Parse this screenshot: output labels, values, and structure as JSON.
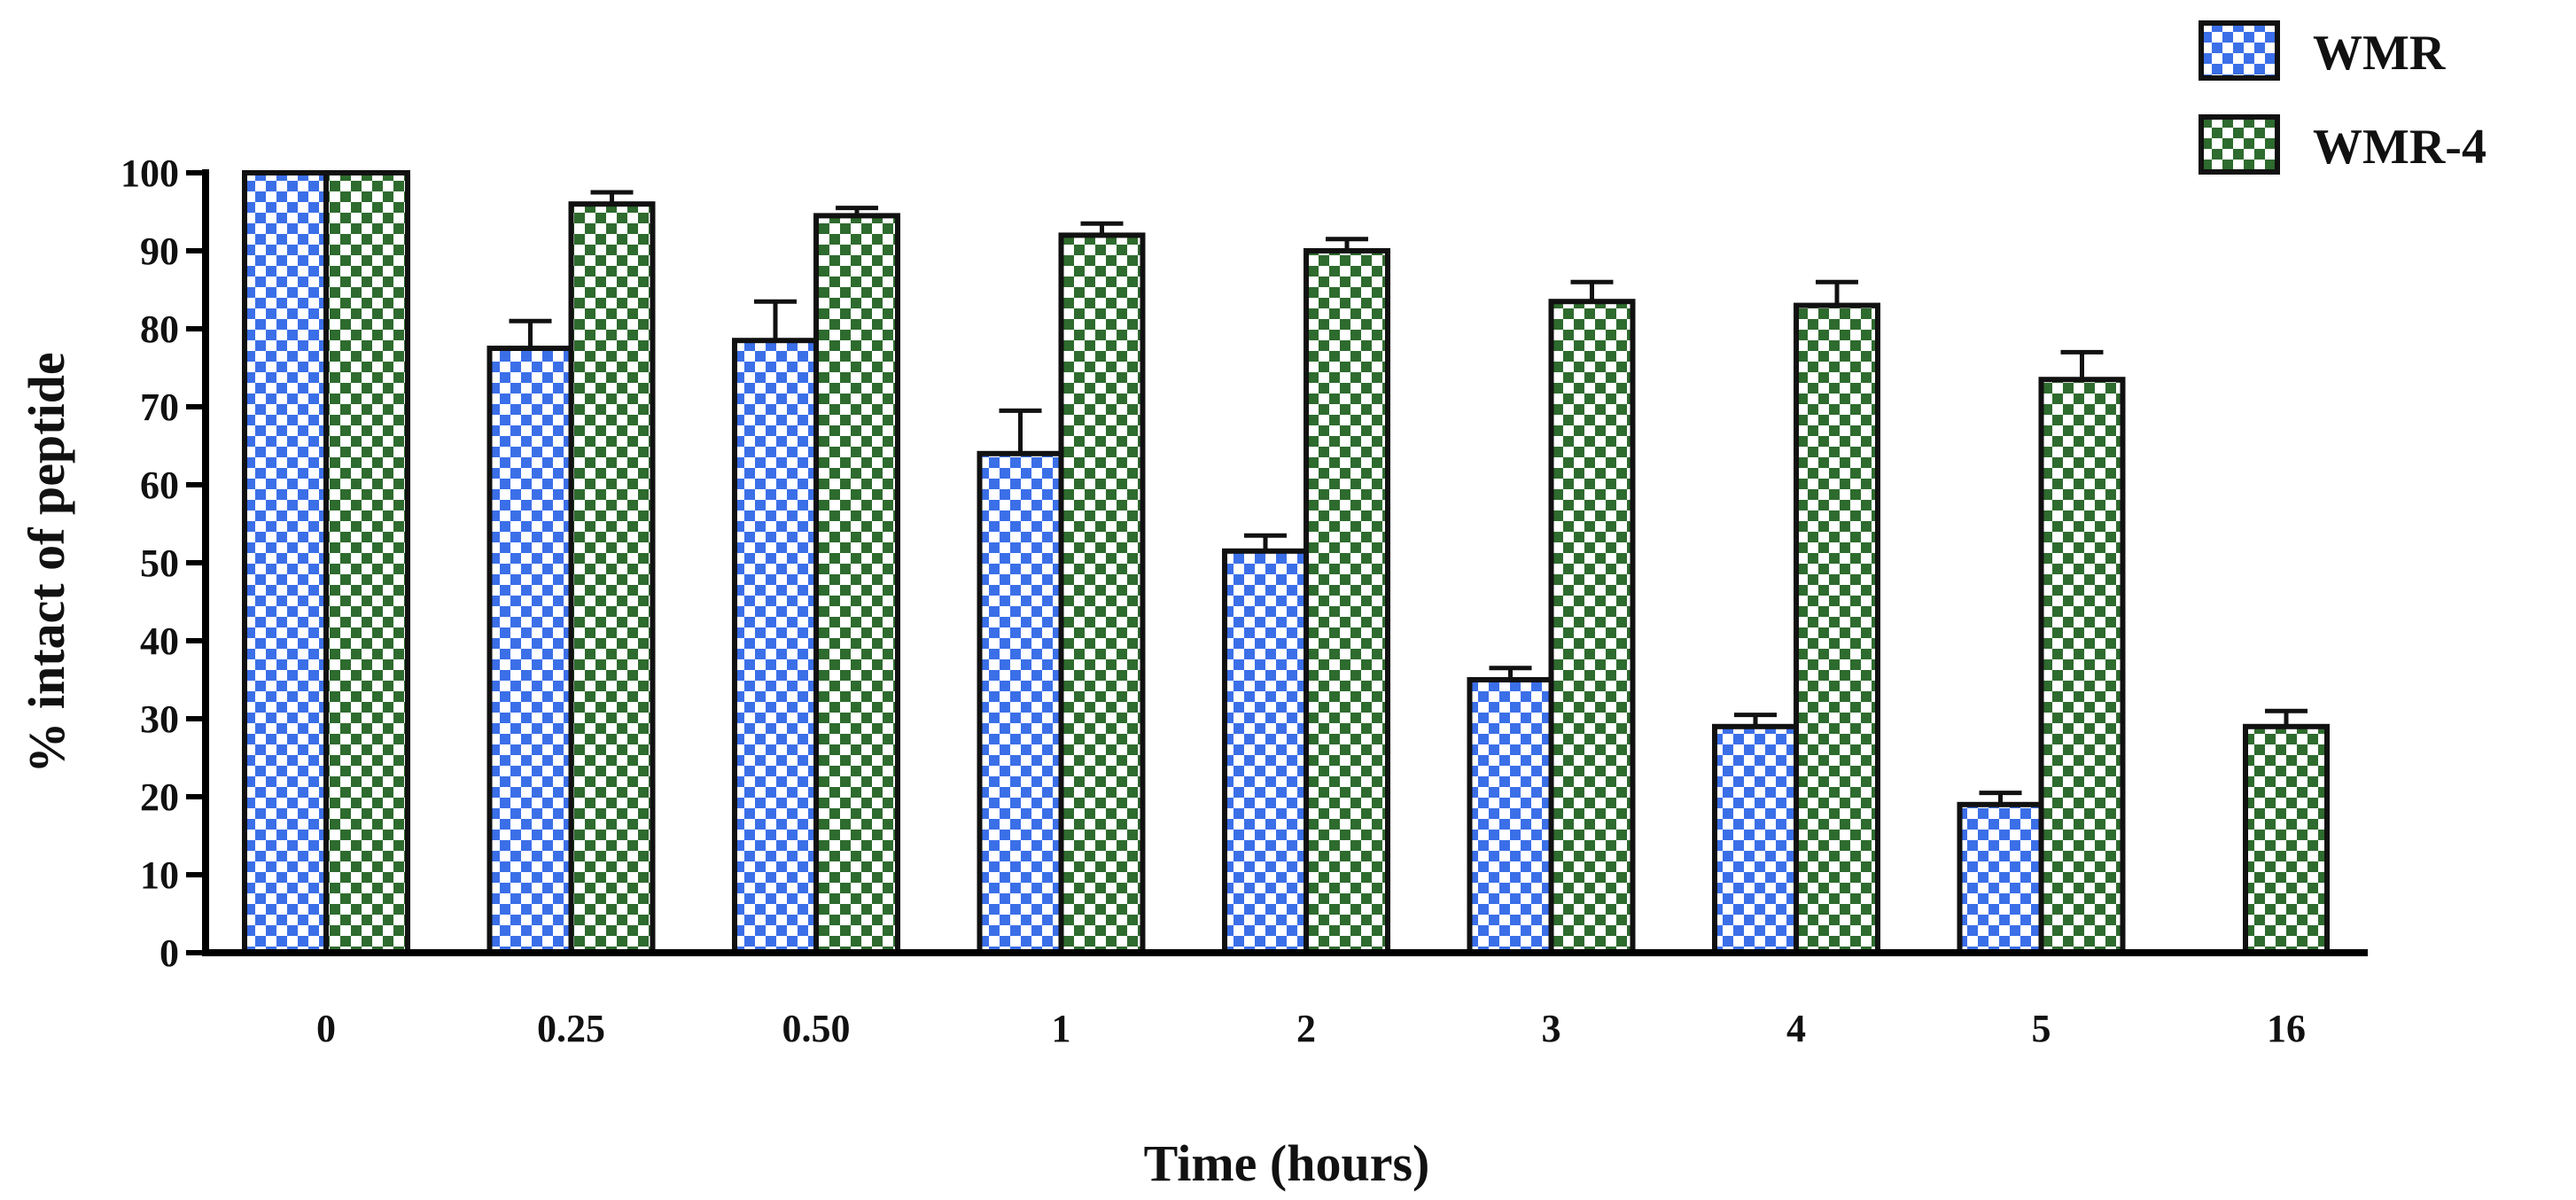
{
  "chart_data": {
    "type": "bar",
    "title": "",
    "xlabel": "Time (hours)",
    "ylabel": "% intact of peptide",
    "ylim": [
      0,
      100
    ],
    "yticks": [
      0,
      10,
      20,
      30,
      40,
      50,
      60,
      70,
      80,
      90,
      100
    ],
    "categories": [
      "0",
      "0.25",
      "0.50",
      "1",
      "2",
      "3",
      "4",
      "5",
      "16"
    ],
    "legend_position": "top-right",
    "grid": false,
    "series": [
      {
        "name": "WMR",
        "pattern": "checkerboard",
        "color": "#3b6fe8",
        "values": [
          100,
          77.5,
          78.5,
          64,
          51.5,
          35,
          29,
          19,
          null
        ],
        "errors": [
          0,
          3.5,
          5,
          5.5,
          2,
          1.5,
          1.5,
          1.5,
          null
        ]
      },
      {
        "name": "WMR-4",
        "pattern": "checkerboard",
        "color": "#2e6b2e",
        "values": [
          100,
          96,
          94.5,
          92,
          90,
          83.5,
          83,
          73.5,
          29
        ],
        "errors": [
          0,
          1.5,
          1,
          1.5,
          1.5,
          2.5,
          3,
          3.5,
          2
        ]
      }
    ]
  }
}
